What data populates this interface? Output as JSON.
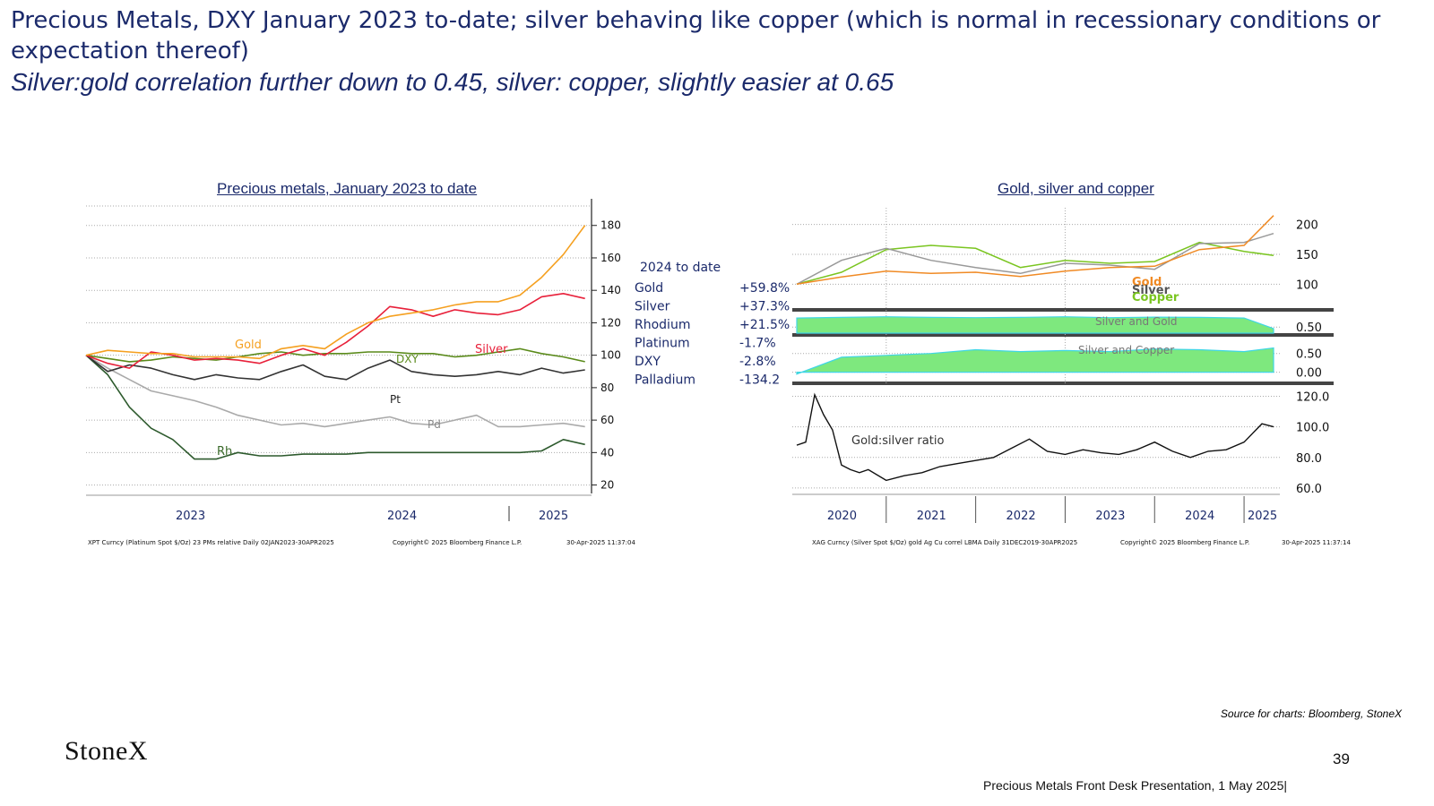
{
  "header": {
    "title": "Precious Metals, DXY January 2023 to-date; silver behaving like copper (which is normal in recessionary conditions or expectation thereof)",
    "subtitle": "Silver:gold correlation further down to 0.45, silver: copper, slightly easier at 0.65"
  },
  "footer": {
    "source": "Source for charts: Bloomberg, StoneX",
    "logo": "StoneX",
    "page_number": "39",
    "presentation": "Precious Metals Front Desk Presentation, 1 May 2025|"
  },
  "chart_data": [
    {
      "type": "line",
      "title": "Precious metals, January 2023 to date",
      "y_ticks": [
        "180",
        "160",
        "140",
        "120",
        "100",
        "80",
        "60",
        "40",
        "20"
      ],
      "ylim": [
        17,
        192
      ],
      "x_tick_labels": [
        "2023",
        "2024",
        "2025"
      ],
      "footnote_left": "XPT Curncy (Platinum Spot $/Oz) 23 PMs relative  Daily 02JAN2023-30APR2025",
      "footnote_center": "Copyright© 2025 Bloomberg Finance L.P.",
      "footnote_right": "30-Apr-2025 11:37:04",
      "legend_header": "2024 to date",
      "legend": [
        {
          "name": "Gold",
          "value": "+59.8%"
        },
        {
          "name": "Silver",
          "value": "+37.3%"
        },
        {
          "name": "Rhodium",
          "value": "+21.5%"
        },
        {
          "name": "Platinum",
          "value": "-1.7%"
        },
        {
          "name": "DXY",
          "value": "-2.8%"
        },
        {
          "name": "Palladium",
          "value": "-134.2"
        }
      ],
      "series": [
        {
          "name": "Gold",
          "color": "#f5a020",
          "x": [
            2023.0,
            2023.1,
            2023.2,
            2023.3,
            2023.4,
            2023.5,
            2023.6,
            2023.7,
            2023.8,
            2023.9,
            2024.0,
            2024.1,
            2024.2,
            2024.3,
            2024.4,
            2024.5,
            2024.6,
            2024.7,
            2024.8,
            2024.9,
            2025.0,
            2025.1,
            2025.2,
            2025.3
          ],
          "values": [
            100,
            103,
            102,
            101,
            101,
            99,
            99,
            99,
            98,
            104,
            106,
            104,
            113,
            120,
            124,
            126,
            128,
            131,
            133,
            133,
            137,
            148,
            162,
            180
          ]
        },
        {
          "name": "Silver",
          "color": "#e8203a",
          "x": [
            2023.0,
            2023.1,
            2023.2,
            2023.3,
            2023.4,
            2023.5,
            2023.6,
            2023.7,
            2023.8,
            2023.9,
            2024.0,
            2024.1,
            2024.2,
            2024.3,
            2024.4,
            2024.5,
            2024.6,
            2024.7,
            2024.8,
            2024.9,
            2025.0,
            2025.1,
            2025.2,
            2025.3
          ],
          "values": [
            100,
            95,
            92,
            102,
            100,
            97,
            98,
            97,
            95,
            100,
            104,
            100,
            108,
            118,
            130,
            128,
            124,
            128,
            126,
            125,
            128,
            136,
            138,
            135
          ]
        },
        {
          "name": "DXY",
          "color": "#5a8a1a",
          "x": [
            2023.0,
            2023.1,
            2023.2,
            2023.3,
            2023.4,
            2023.5,
            2023.6,
            2023.7,
            2023.8,
            2023.9,
            2024.0,
            2024.1,
            2024.2,
            2024.3,
            2024.4,
            2024.5,
            2024.6,
            2024.7,
            2024.8,
            2024.9,
            2025.0,
            2025.1,
            2025.2,
            2025.3
          ],
          "values": [
            100,
            98,
            96,
            97,
            99,
            98,
            97,
            99,
            101,
            102,
            100,
            101,
            101,
            102,
            102,
            101,
            101,
            99,
            100,
            102,
            104,
            101,
            99,
            96
          ]
        },
        {
          "name": "Pt",
          "color": "#333333",
          "x": [
            2023.0,
            2023.1,
            2023.2,
            2023.3,
            2023.4,
            2023.5,
            2023.6,
            2023.7,
            2023.8,
            2023.9,
            2024.0,
            2024.1,
            2024.2,
            2024.3,
            2024.4,
            2024.5,
            2024.6,
            2024.7,
            2024.8,
            2024.9,
            2025.0,
            2025.1,
            2025.2,
            2025.3
          ],
          "values": [
            100,
            90,
            94,
            92,
            88,
            85,
            88,
            86,
            85,
            90,
            94,
            87,
            85,
            92,
            97,
            90,
            88,
            87,
            88,
            90,
            88,
            92,
            89,
            91
          ]
        },
        {
          "name": "Pd",
          "color": "#aaaaaa",
          "x": [
            2023.0,
            2023.1,
            2023.2,
            2023.3,
            2023.4,
            2023.5,
            2023.6,
            2023.7,
            2023.8,
            2023.9,
            2024.0,
            2024.1,
            2024.2,
            2024.3,
            2024.4,
            2024.5,
            2024.6,
            2024.7,
            2024.8,
            2024.9,
            2025.0,
            2025.1,
            2025.2,
            2025.3
          ],
          "values": [
            100,
            92,
            85,
            78,
            75,
            72,
            68,
            63,
            60,
            57,
            58,
            56,
            58,
            60,
            62,
            58,
            57,
            60,
            63,
            56,
            56,
            57,
            58,
            56
          ]
        },
        {
          "name": "Rh",
          "color": "#2d5a2d",
          "x": [
            2023.0,
            2023.1,
            2023.2,
            2023.3,
            2023.4,
            2023.5,
            2023.6,
            2023.7,
            2023.8,
            2023.9,
            2024.0,
            2024.1,
            2024.2,
            2024.3,
            2024.4,
            2024.5,
            2024.6,
            2024.7,
            2024.8,
            2024.9,
            2025.0,
            2025.1,
            2025.2,
            2025.3
          ],
          "values": [
            100,
            88,
            68,
            55,
            48,
            36,
            36,
            40,
            38,
            38,
            39,
            39,
            39,
            40,
            40,
            40,
            40,
            40,
            40,
            40,
            40,
            41,
            48,
            45
          ]
        }
      ],
      "series_labels": [
        "Gold",
        "Silver",
        "DXY",
        "Pt",
        "Pd",
        "Rh"
      ]
    },
    {
      "type": "line",
      "title": "Gold, silver and copper",
      "x_tick_labels": [
        "2020",
        "2021",
        "2022",
        "2023",
        "2024",
        "2025"
      ],
      "footnote_left": "XAG Curncy (Silver Spot $/Oz) gold Ag Cu correl LBMA  Daily 31DEC2019-30APR2025",
      "footnote_center": "Copyright© 2025 Bloomberg Finance L.P.",
      "footnote_right": "30-Apr-2025 11:37:14",
      "panels": [
        {
          "name": "prices",
          "y_ticks": [
            "200",
            "150",
            "100"
          ],
          "ylim": [
            78,
            228
          ],
          "labels": [
            "Gold",
            "Silver",
            "Copper"
          ],
          "series": [
            {
              "name": "Gold",
              "color": "#f08a24",
              "x": [
                2020.0,
                2020.5,
                2021.0,
                2021.5,
                2022.0,
                2022.5,
                2023.0,
                2023.5,
                2024.0,
                2024.5,
                2025.0,
                2025.33
              ],
              "values": [
                100,
                112,
                122,
                118,
                120,
                113,
                122,
                128,
                130,
                158,
                165,
                215
              ]
            },
            {
              "name": "Silver",
              "color": "#999999",
              "x": [
                2020.0,
                2020.5,
                2021.0,
                2021.5,
                2022.0,
                2022.5,
                2023.0,
                2023.5,
                2024.0,
                2024.5,
                2025.0,
                2025.33
              ],
              "values": [
                100,
                140,
                160,
                140,
                128,
                118,
                135,
                132,
                125,
                168,
                170,
                185
              ]
            },
            {
              "name": "Copper",
              "color": "#7ac520",
              "x": [
                2020.0,
                2020.5,
                2021.0,
                2021.5,
                2022.0,
                2022.5,
                2023.0,
                2023.5,
                2024.0,
                2024.5,
                2025.0,
                2025.33
              ],
              "values": [
                100,
                120,
                158,
                165,
                160,
                128,
                140,
                135,
                138,
                170,
                155,
                148
              ]
            }
          ]
        },
        {
          "name": "silver-gold-correlation",
          "label": "Silver and Gold",
          "y_ticks": [
            "0.50"
          ],
          "ylim": [
            0.3,
            0.95
          ],
          "fill": "#7ee87e",
          "x": [
            2020.0,
            2020.5,
            2021.0,
            2021.5,
            2022.0,
            2022.5,
            2023.0,
            2023.5,
            2024.0,
            2024.5,
            2025.0,
            2025.33
          ],
          "values": [
            0.8,
            0.82,
            0.84,
            0.82,
            0.81,
            0.82,
            0.84,
            0.81,
            0.83,
            0.82,
            0.8,
            0.45
          ]
        },
        {
          "name": "silver-copper-correlation",
          "label": "Silver and Copper",
          "y_ticks": [
            "0.50",
            "0.00"
          ],
          "ylim": [
            -0.2,
            0.9
          ],
          "fill": "#7ee87e",
          "x": [
            2020.0,
            2020.5,
            2021.0,
            2021.5,
            2022.0,
            2022.5,
            2023.0,
            2023.5,
            2024.0,
            2024.5,
            2025.0,
            2025.33
          ],
          "values": [
            -0.05,
            0.4,
            0.45,
            0.5,
            0.6,
            0.55,
            0.58,
            0.55,
            0.62,
            0.6,
            0.55,
            0.65
          ]
        },
        {
          "name": "gold-silver-ratio",
          "label": "Gold:silver ratio",
          "y_ticks": [
            "120.0",
            "100.0",
            "80.0",
            "60.0"
          ],
          "ylim": [
            57,
            125
          ],
          "color": "#111111",
          "x": [
            2020.0,
            2020.1,
            2020.2,
            2020.3,
            2020.4,
            2020.5,
            2020.6,
            2020.7,
            2020.8,
            2021.0,
            2021.2,
            2021.4,
            2021.6,
            2021.8,
            2022.0,
            2022.2,
            2022.4,
            2022.6,
            2022.8,
            2023.0,
            2023.2,
            2023.4,
            2023.6,
            2023.8,
            2024.0,
            2024.2,
            2024.4,
            2024.6,
            2024.8,
            2025.0,
            2025.2,
            2025.33
          ],
          "values": [
            88,
            90,
            121,
            108,
            98,
            75,
            72,
            70,
            72,
            65,
            68,
            70,
            74,
            76,
            78,
            80,
            86,
            92,
            84,
            82,
            85,
            83,
            82,
            85,
            90,
            84,
            80,
            84,
            85,
            90,
            102,
            100
          ]
        }
      ]
    }
  ]
}
